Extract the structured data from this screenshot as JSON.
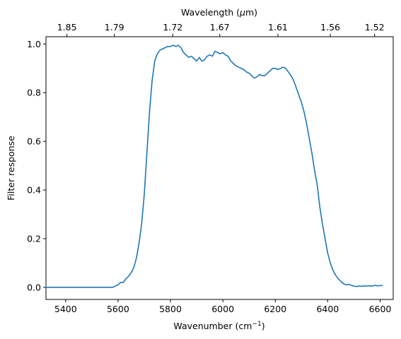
{
  "chart_data": {
    "type": "line",
    "xlabel": "Wavenumber (cm",
    "xlabel_sup": "−1",
    "xlabel_close": ")",
    "ylabel": "Filter response",
    "top_xlabel": "Wavelength (",
    "top_xlabel_mu": "μ",
    "top_xlabel_unit": "m)",
    "xlim": [
      5325,
      6650
    ],
    "ylim": [
      -0.05,
      1.03
    ],
    "x_ticks": [
      5400,
      5600,
      5800,
      6000,
      6200,
      6400,
      6600
    ],
    "x_tick_labels": [
      "5400",
      "5600",
      "5800",
      "6000",
      "6200",
      "6400",
      "6600"
    ],
    "y_ticks": [
      0.0,
      0.2,
      0.4,
      0.6,
      0.8,
      1.0
    ],
    "y_tick_labels": [
      "0.0",
      "0.2",
      "0.4",
      "0.6",
      "0.8",
      "1.0"
    ],
    "top_ticks": [
      5405,
      5586,
      5809,
      5988,
      6210,
      6410,
      6579
    ],
    "top_tick_labels": [
      "1.85",
      "1.79",
      "1.72",
      "1.67",
      "1.61",
      "1.56",
      "1.52"
    ],
    "grid": false,
    "line_color": "#1f77b4",
    "series": [
      {
        "x": [
          5320,
          5400,
          5500,
          5580,
          5590,
          5600,
          5610,
          5620,
          5630,
          5640,
          5650,
          5660,
          5670,
          5680,
          5690,
          5700,
          5710,
          5720,
          5730,
          5740,
          5750,
          5760,
          5770,
          5780,
          5790,
          5800,
          5810,
          5820,
          5830,
          5840,
          5850,
          5860,
          5870,
          5880,
          5890,
          5900,
          5910,
          5920,
          5930,
          5940,
          5950,
          5960,
          5970,
          5980,
          5990,
          6000,
          6010,
          6020,
          6030,
          6040,
          6050,
          6060,
          6070,
          6080,
          6090,
          6100,
          6110,
          6120,
          6130,
          6140,
          6150,
          6160,
          6170,
          6180,
          6190,
          6200,
          6210,
          6220,
          6230,
          6240,
          6250,
          6260,
          6270,
          6280,
          6290,
          6300,
          6310,
          6320,
          6330,
          6340,
          6350,
          6360,
          6370,
          6380,
          6390,
          6400,
          6410,
          6420,
          6430,
          6440,
          6450,
          6460,
          6470,
          6480,
          6490,
          6500,
          6510,
          6520,
          6530,
          6540,
          6550,
          6560,
          6570,
          6580,
          6590,
          6600,
          6610
        ],
        "y": [
          0.0,
          0.0,
          0.0,
          0.0,
          0.005,
          0.01,
          0.02,
          0.02,
          0.035,
          0.045,
          0.06,
          0.08,
          0.12,
          0.18,
          0.26,
          0.38,
          0.55,
          0.72,
          0.85,
          0.93,
          0.96,
          0.975,
          0.98,
          0.985,
          0.99,
          0.99,
          0.995,
          0.99,
          0.995,
          0.985,
          0.965,
          0.955,
          0.945,
          0.95,
          0.94,
          0.93,
          0.945,
          0.93,
          0.935,
          0.95,
          0.955,
          0.95,
          0.97,
          0.965,
          0.96,
          0.965,
          0.955,
          0.95,
          0.93,
          0.92,
          0.91,
          0.905,
          0.9,
          0.895,
          0.885,
          0.88,
          0.87,
          0.86,
          0.865,
          0.875,
          0.87,
          0.87,
          0.88,
          0.89,
          0.9,
          0.9,
          0.895,
          0.9,
          0.905,
          0.9,
          0.885,
          0.87,
          0.85,
          0.82,
          0.79,
          0.76,
          0.72,
          0.67,
          0.61,
          0.55,
          0.48,
          0.42,
          0.33,
          0.26,
          0.2,
          0.14,
          0.1,
          0.07,
          0.05,
          0.035,
          0.025,
          0.015,
          0.01,
          0.012,
          0.008,
          0.005,
          0.003,
          0.005,
          0.004,
          0.006,
          0.005,
          0.006,
          0.005,
          0.008,
          0.006,
          0.007,
          0.008
        ]
      }
    ]
  }
}
